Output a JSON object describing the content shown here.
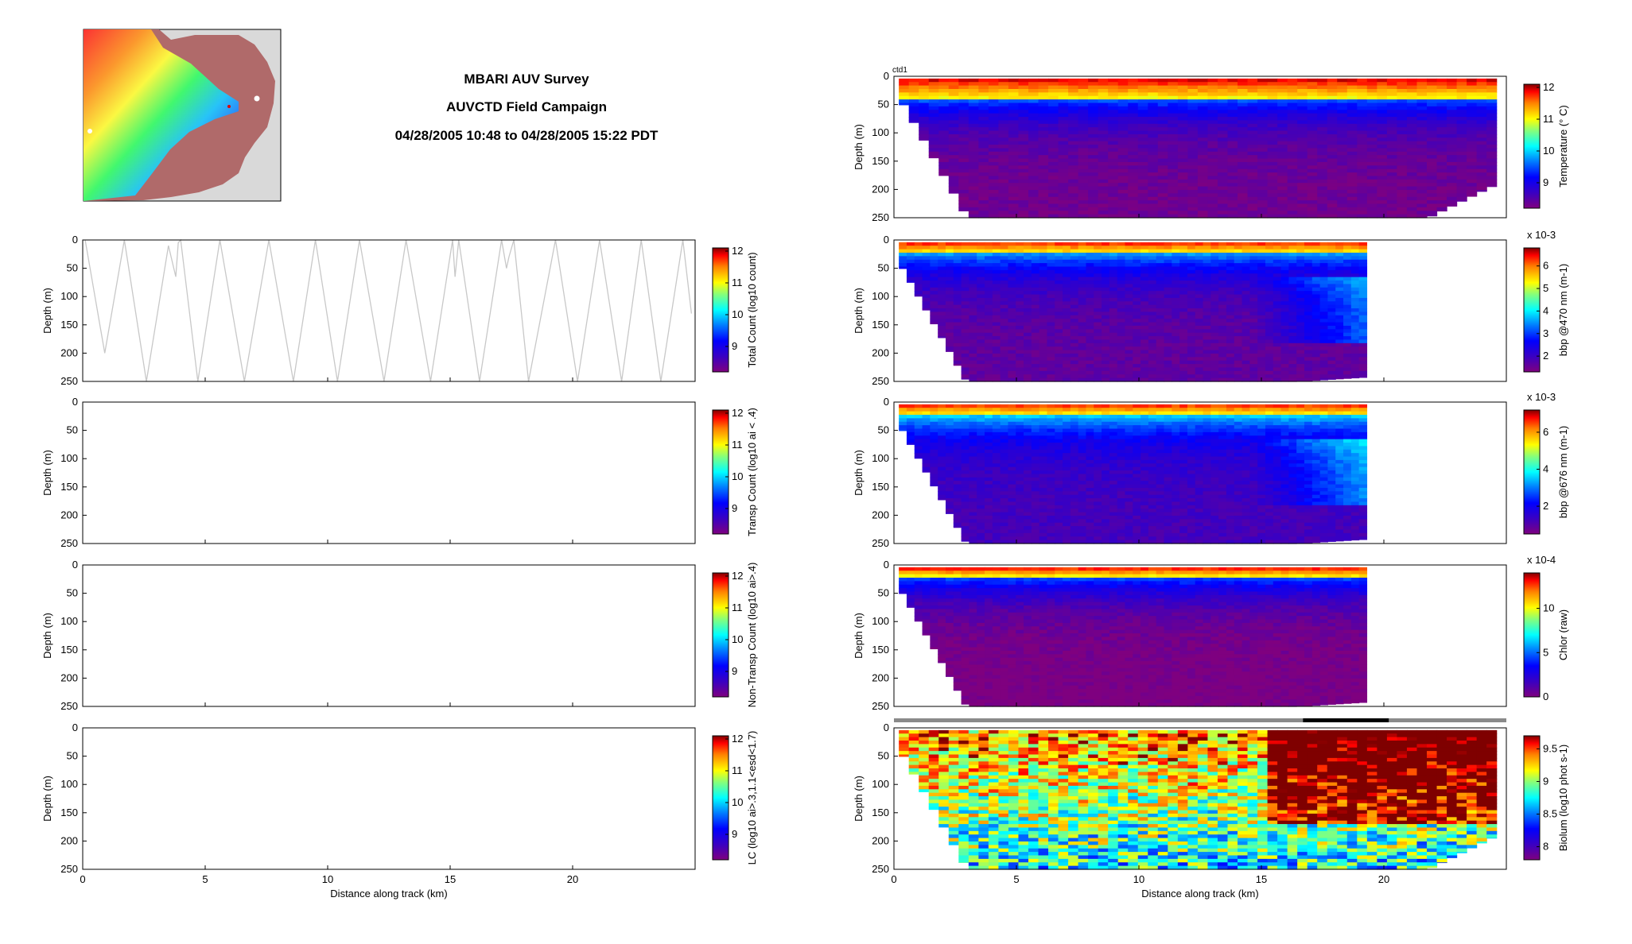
{
  "header": {
    "line1": "MBARI AUV Survey",
    "line2": "AUVCTD Field Campaign",
    "line3": "04/28/2005 10:48 to 04/28/2005 15:22 PDT"
  },
  "colors": {
    "jet_low": "#7f007f",
    "jet_mid": "#00ff00",
    "jet_high": "#7f0000",
    "track_line": "#c8c8c8",
    "land_bg": "#b06a6a",
    "map_bg": "#d9d9d9"
  },
  "map": {
    "icon": "bathymetry-map-thumbnail"
  },
  "chart_data": [
    {
      "id": "total-count",
      "type": "line",
      "ylabel": "Depth (m)",
      "ylim": [
        0,
        250
      ],
      "yticks": [
        0,
        50,
        100,
        150,
        200,
        250
      ],
      "xlim": [
        0,
        25
      ],
      "xticks": [
        0,
        5,
        10,
        15,
        20
      ],
      "xlabel": "",
      "colorbar": {
        "label": "Total Count (log10 count)",
        "ticks": [
          "12",
          "11",
          "10",
          "9"
        ],
        "range": [
          8.2,
          12.1
        ],
        "multiplier": ""
      },
      "series": [
        {
          "x": [
            0.1,
            0.9,
            1.7,
            2.6,
            3.5,
            3.8,
            3.9,
            4.0,
            4.7,
            5.6,
            6.6,
            7.6,
            8.6,
            9.5,
            10.4,
            11.3,
            12.3,
            13.2,
            14.2,
            15.1,
            15.2,
            15.35,
            16.2,
            17.1,
            17.3,
            17.4,
            17.6,
            18.2,
            19.3,
            20.2,
            21.1,
            22.0,
            22.8,
            23.6,
            24.5,
            24.85
          ],
          "depth": [
            0,
            200,
            0,
            250,
            10,
            65,
            5,
            0,
            250,
            0,
            250,
            0,
            250,
            0,
            250,
            0,
            250,
            0,
            250,
            0,
            65,
            0,
            250,
            0,
            50,
            30,
            0,
            250,
            0,
            250,
            0,
            250,
            0,
            250,
            0,
            130
          ]
        }
      ]
    },
    {
      "id": "transp-count",
      "type": "heatmap",
      "ylabel": "Depth (m)",
      "ylim": [
        0,
        250
      ],
      "yticks": [
        0,
        50,
        100,
        150,
        200,
        250
      ],
      "xlim": [
        0,
        25
      ],
      "xticks": [
        0,
        5,
        10,
        15,
        20
      ],
      "xlabel": "",
      "colorbar": {
        "label": "Transp Count (log10 ai < .4)",
        "ticks": [
          "12",
          "11",
          "10",
          "9"
        ],
        "range": [
          8.2,
          12.1
        ],
        "multiplier": ""
      }
    },
    {
      "id": "non-transp-count",
      "type": "heatmap",
      "ylabel": "Depth (m)",
      "ylim": [
        0,
        250
      ],
      "yticks": [
        0,
        50,
        100,
        150,
        200,
        250
      ],
      "xlim": [
        0,
        25
      ],
      "xticks": [
        0,
        5,
        10,
        15,
        20
      ],
      "xlabel": "",
      "colorbar": {
        "label": "Non-Transp Count (log10 ai>.4)",
        "ticks": [
          "12",
          "11",
          "10",
          "9"
        ],
        "range": [
          8.2,
          12.1
        ],
        "multiplier": ""
      }
    },
    {
      "id": "lc",
      "type": "heatmap",
      "ylabel": "Depth (m)",
      "ylim": [
        0,
        250
      ],
      "yticks": [
        0,
        50,
        100,
        150,
        200,
        250
      ],
      "xlim": [
        0,
        25
      ],
      "xticks": [
        0,
        5,
        10,
        15,
        20
      ],
      "xlabel": "Distance along track (km)",
      "colorbar": {
        "label": "LC (log10 ai>.3,1.1<esd<1.7)",
        "ticks": [
          "12",
          "11",
          "10",
          "9"
        ],
        "range": [
          8.2,
          12.1
        ],
        "multiplier": ""
      }
    },
    {
      "id": "temperature",
      "type": "heatmap",
      "annotation": "ctd1",
      "ylabel": "Depth (m)",
      "ylim": [
        0,
        250
      ],
      "yticks": [
        0,
        50,
        100,
        150,
        200,
        250
      ],
      "xlim": [
        0,
        25
      ],
      "xticks": [
        0,
        5,
        10,
        15,
        20
      ],
      "xlabel": "",
      "colorbar": {
        "label": "Temperature (° C)",
        "ticks": [
          "12",
          "11",
          "10",
          "9"
        ],
        "range": [
          8.2,
          12.1
        ],
        "multiplier": ""
      },
      "field": {
        "surface_value": 12.0,
        "thermocline_depth": 35,
        "deep_value": 8.3,
        "x_end": 24.6
      }
    },
    {
      "id": "bbp470",
      "type": "heatmap",
      "ylabel": "Depth (m)",
      "ylim": [
        0,
        250
      ],
      "yticks": [
        0,
        50,
        100,
        150,
        200,
        250
      ],
      "xlim": [
        0,
        25
      ],
      "xticks": [
        0,
        5,
        10,
        15,
        20
      ],
      "xlabel": "",
      "colorbar": {
        "label": "bbp @470 nm (m-1)",
        "ticks": [
          "6",
          "5",
          "4",
          "3",
          "2"
        ],
        "range": [
          1.3,
          6.8
        ],
        "multiplier": "x 10-3"
      },
      "field": {
        "surface_value": 6.5,
        "thermocline_depth": 22,
        "deep_value": 1.6,
        "x_end": 19.3
      }
    },
    {
      "id": "bbp676",
      "type": "heatmap",
      "ylabel": "Depth (m)",
      "ylim": [
        0,
        250
      ],
      "yticks": [
        0,
        50,
        100,
        150,
        200,
        250
      ],
      "xlim": [
        0,
        25
      ],
      "xticks": [
        0,
        5,
        10,
        15,
        20
      ],
      "xlabel": "",
      "colorbar": {
        "label": "bbp @676 nm (m-1)",
        "ticks": [
          "6",
          "4",
          "2"
        ],
        "range": [
          0.5,
          7.2
        ],
        "multiplier": "x 10-3"
      },
      "field": {
        "surface_value": 6.8,
        "thermocline_depth": 22,
        "deep_value": 1.2,
        "x_end": 19.3
      }
    },
    {
      "id": "chlor",
      "type": "heatmap",
      "ylabel": "Depth (m)",
      "ylim": [
        0,
        250
      ],
      "yticks": [
        0,
        50,
        100,
        150,
        200,
        250
      ],
      "xlim": [
        0,
        25
      ],
      "xticks": [
        0,
        5,
        10,
        15,
        20
      ],
      "xlabel": "",
      "colorbar": {
        "label": "Chlor (raw)",
        "ticks": [
          "10",
          "5",
          "0"
        ],
        "range": [
          0,
          14
        ],
        "multiplier": "x 10-4"
      },
      "field": {
        "surface_value": 13.5,
        "thermocline_depth": 18,
        "deep_value": 0,
        "x_end": 19.3
      }
    },
    {
      "id": "biolum",
      "type": "heatmap",
      "ylabel": "Depth (m)",
      "ylim": [
        0,
        250
      ],
      "yticks": [
        0,
        50,
        100,
        150,
        200,
        250
      ],
      "xlim": [
        0,
        25
      ],
      "xticks": [
        0,
        5,
        10,
        15,
        20
      ],
      "xlabel": "Distance along track (km)",
      "colorbar": {
        "label": "Biolum (log10 phot s-1)",
        "ticks": [
          "9.5",
          "9",
          "8.5",
          "8"
        ],
        "range": [
          7.8,
          9.7
        ],
        "multiplier": ""
      },
      "field": {
        "surface_value": 9.6,
        "thermocline_depth": 30,
        "deep_value": 8.3,
        "x_end": 24.6
      },
      "time_bar": {
        "x_range": [
          0,
          25
        ],
        "dark_segment": [
          16.7,
          20.2
        ]
      }
    }
  ]
}
